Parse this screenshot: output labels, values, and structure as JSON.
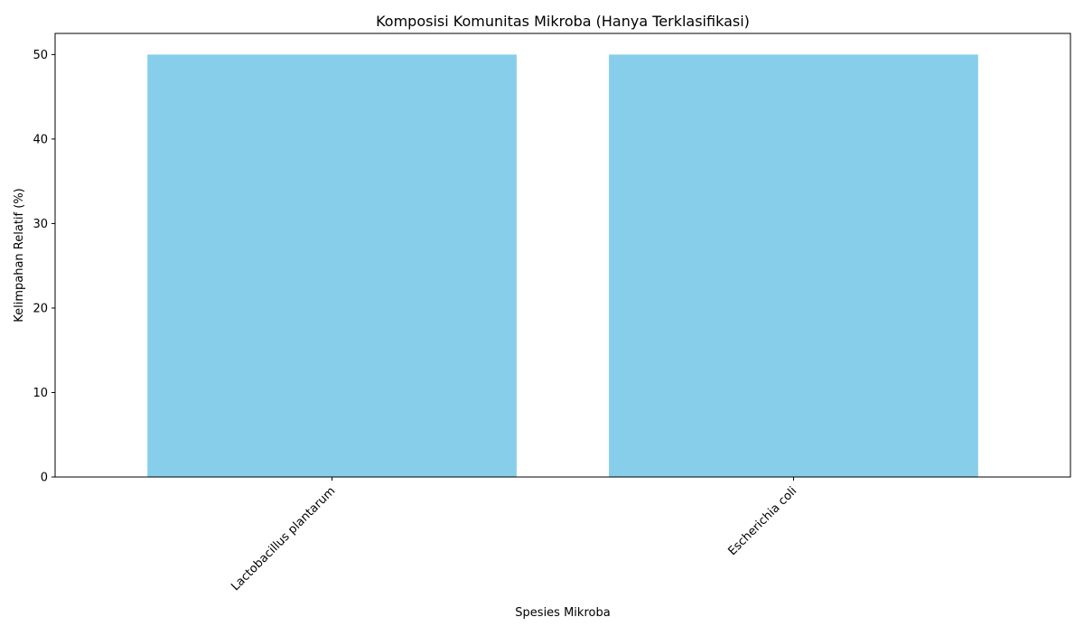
{
  "chart_data": {
    "type": "bar",
    "title": "Komposisi Komunitas Mikroba (Hanya Terklasifikasi)",
    "xlabel": "Spesies Mikroba",
    "ylabel": "Kelimpahan Relatif (%)",
    "categories": [
      "Lactobacillus plantarum",
      "Escherichia coli"
    ],
    "values": [
      50,
      50
    ],
    "ylim": [
      0,
      52.5
    ],
    "yticks": [
      0,
      10,
      20,
      30,
      40,
      50
    ],
    "bar_color": "#87CEEB",
    "grid": false,
    "legend": "none"
  }
}
